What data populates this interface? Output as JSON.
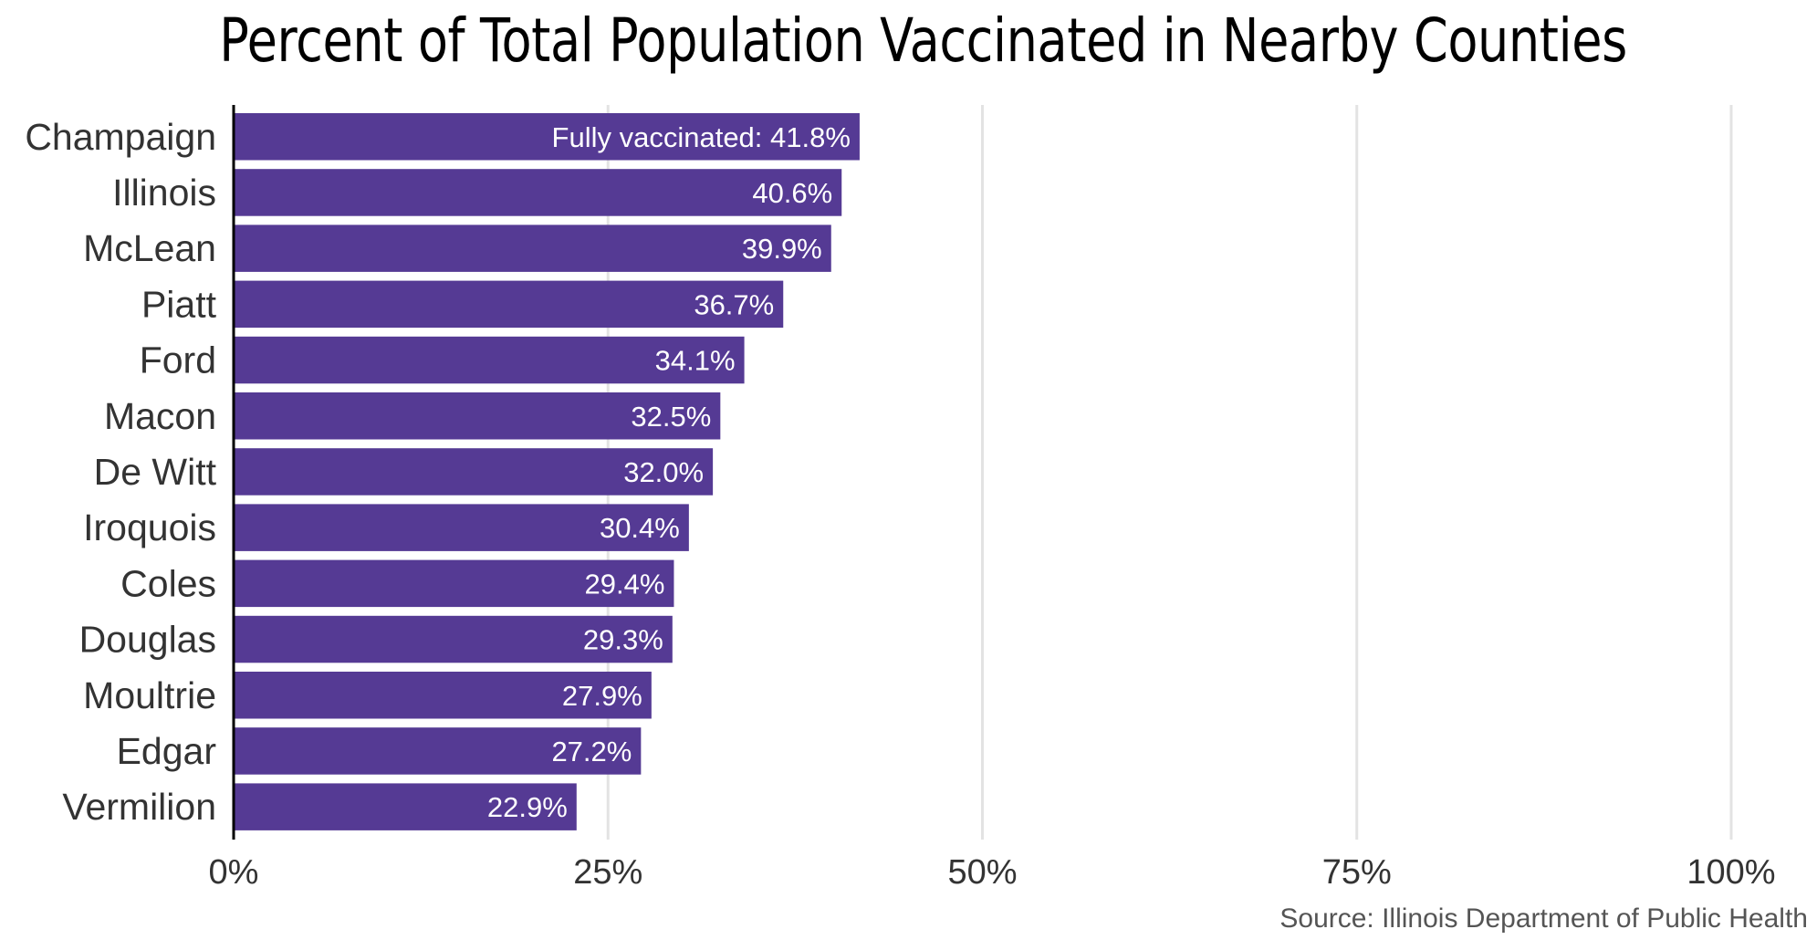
{
  "chart_data": {
    "type": "bar",
    "orientation": "horizontal",
    "title": "Percent of Total Population Vaccinated in Nearby Counties",
    "xlabel": "",
    "ylabel": "",
    "source": "Source: Illinois Department of Public Health",
    "xlim": [
      0,
      100
    ],
    "ticks": [
      {
        "value": 0,
        "label": "0%"
      },
      {
        "value": 25,
        "label": "25%"
      },
      {
        "value": 50,
        "label": "50%"
      },
      {
        "value": 75,
        "label": "75%"
      },
      {
        "value": 100,
        "label": "100%"
      }
    ],
    "grid": true,
    "bar_color": "#553a94",
    "categories": [
      "Champaign",
      "Illinois",
      "McLean",
      "Piatt",
      "Ford",
      "Macon",
      "De Witt",
      "Iroquois",
      "Coles",
      "Douglas",
      "Moultrie",
      "Edgar",
      "Vermilion"
    ],
    "values": [
      41.8,
      40.6,
      39.9,
      36.7,
      34.1,
      32.5,
      32.0,
      30.4,
      29.4,
      29.3,
      27.9,
      27.2,
      22.9
    ],
    "value_labels": [
      "Fully vaccinated: 41.8%",
      "40.6%",
      "39.9%",
      "36.7%",
      "34.1%",
      "32.5%",
      "32.0%",
      "30.4%",
      "29.4%",
      "29.3%",
      "27.9%",
      "27.2%",
      "22.9%"
    ]
  }
}
